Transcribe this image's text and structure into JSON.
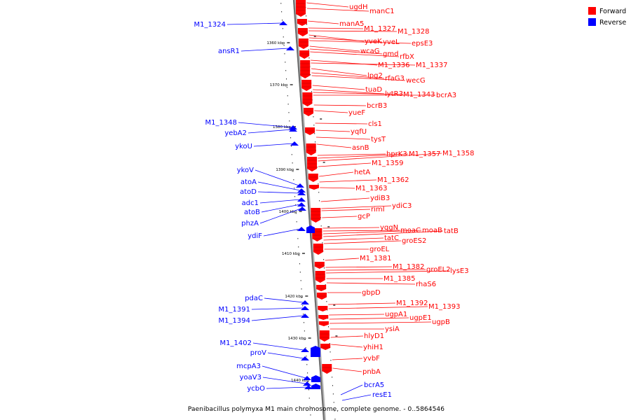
{
  "legend": [
    {
      "label": "Forward",
      "color": "#ff0000"
    },
    {
      "label": "Reverse",
      "color": "#0000ff"
    }
  ],
  "caption": "Paenibacillus polymyxa M1 main chromosome, complete genome. - 0..5864546",
  "colors": {
    "forward": "#ff0000",
    "reverse": "#0000ff",
    "backbone": "#888888"
  },
  "ticks": [
    "1360 kbp",
    "1370 kbp",
    "1380 kbp",
    "1390 kbp",
    "1400 kbp",
    "1410 kbp",
    "1420 kbp",
    "1430 kbp",
    "1440 kbp"
  ],
  "forward_genes": [
    "ugdH",
    "manC1",
    "manA5",
    "M1_1327",
    "M1_1328",
    "yveK",
    "yveL",
    "epsE3",
    "wcaG",
    "gmd",
    "rfbX",
    "M1_1336",
    "M1_1337",
    "lpg2",
    "rfaG3",
    "wecG",
    "tuaD",
    "lytR3",
    "M1_1343",
    "bcrA3",
    "bcrB3",
    "yueF",
    "cls1",
    "yqfU",
    "tysT",
    "asnB",
    "hprK3",
    "M1_1357",
    "M1_1358",
    "M1_1359",
    "hetA",
    "M1_1362",
    "M1_1363",
    "ydiB3",
    "ydiC3",
    "rimI",
    "gcP",
    "yqgN",
    "moaC",
    "moaB",
    "tatB",
    "tatC",
    "groES2",
    "groEL",
    "M1_1381",
    "M1_1382",
    "groEL2",
    "lysE3",
    "M1_1385",
    "rhaS6",
    "gbpD",
    "M1_1392",
    "M1_1393",
    "ugpA1",
    "ugpE1",
    "ugpB",
    "ysiA",
    "hlyD1",
    "yhiH1",
    "yvbF",
    "pnbA"
  ],
  "reverse_genes": [
    "M1_1324",
    "ansR1",
    "M1_1348",
    "yebA2",
    "ykoU",
    "ykoV",
    "atoA",
    "atoD",
    "adc1",
    "atoB",
    "phzA",
    "ydiF",
    "pdaC",
    "M1_1391",
    "M1_1394",
    "M1_1402",
    "proV",
    "mcpA3",
    "yoaV3",
    "ycbO",
    "bcrA5",
    "resE1"
  ]
}
